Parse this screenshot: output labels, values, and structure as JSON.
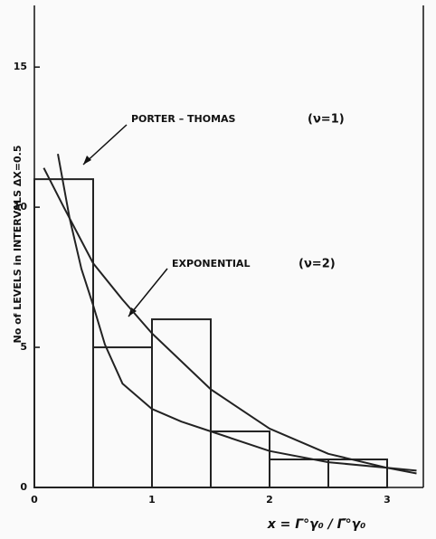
{
  "chart_data": {
    "type": "histogram",
    "ylabel": "No of LEVELS in INTERVALS ΔX=0.5",
    "xlabel": "x = Γ°γ₀ / Γ̄°γ₀",
    "bins": [
      0,
      0.5,
      1,
      1.5,
      2,
      2.5,
      3
    ],
    "values": [
      11,
      5,
      6,
      2,
      1,
      1
    ],
    "color": "#222222",
    "curves": [
      {
        "name": "PORTER – THOMAS",
        "label": "(ν=1)",
        "color": "#222222",
        "x": [
          0.2,
          0.3,
          0.4,
          0.5,
          0.6,
          0.75,
          1,
          1.25,
          1.5,
          2,
          2.5,
          3,
          3.25
        ],
        "values": [
          11.9,
          9.6,
          7.8,
          6.5,
          5.1,
          3.7,
          2.8,
          2.35,
          2,
          1.3,
          0.9,
          0.7,
          0.6
        ]
      },
      {
        "name": "EXPONENTIAL",
        "label": "(ν=2)",
        "color": "#222222",
        "x": [
          0.08,
          0.25,
          0.5,
          0.75,
          1,
          1.5,
          2,
          2.5,
          3,
          3.25
        ],
        "values": [
          11.4,
          10,
          8,
          6.7,
          5.5,
          3.5,
          2.1,
          1.2,
          0.7,
          0.5
        ]
      }
    ],
    "xlim": [
      0,
      3.3
    ],
    "ylim": [
      0,
      17.2
    ],
    "xticks": [
      0,
      1,
      2,
      3
    ],
    "yticks": [
      0,
      5,
      10,
      15
    ]
  }
}
